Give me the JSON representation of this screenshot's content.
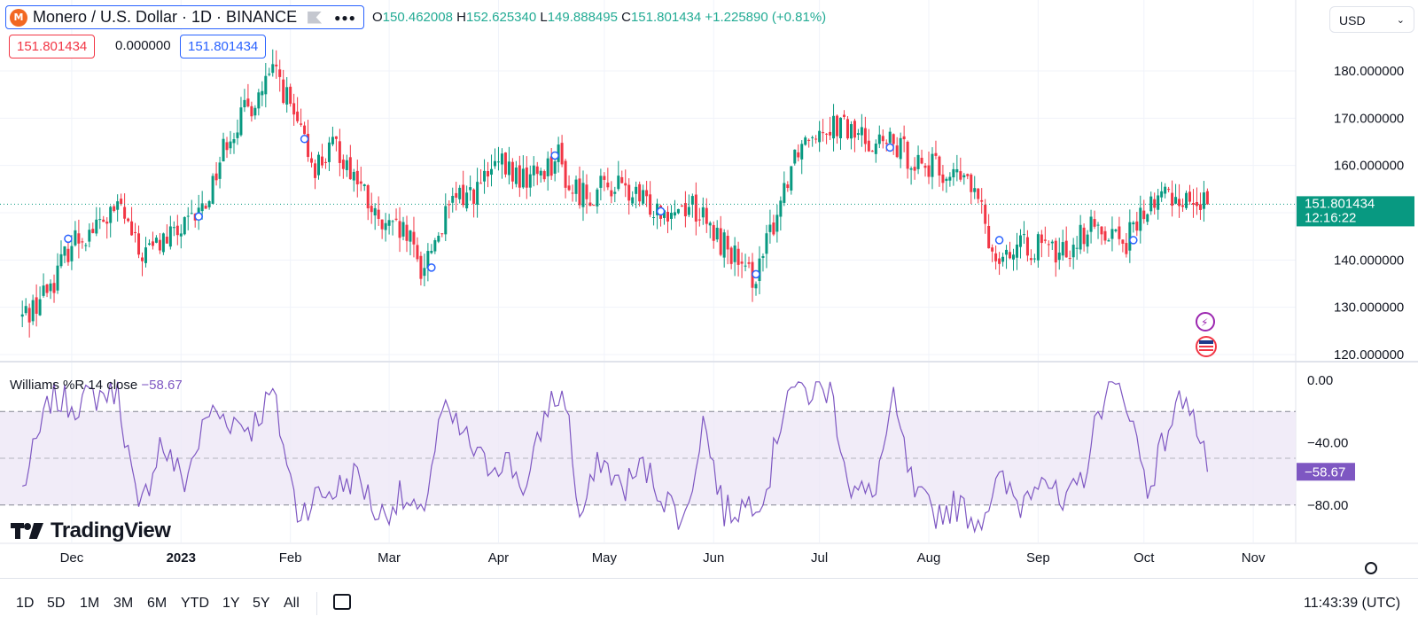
{
  "symbol": {
    "title": "Monero / U.S. Dollar · 1D · BINANCE",
    "logo_glyph": "M",
    "logo_color": "#f26822",
    "icons": [
      "monero-logo-icon",
      "flag-icon",
      "more-icon"
    ]
  },
  "ohlc": {
    "o_label": "O",
    "o_value": "150.462008",
    "h_label": "H",
    "h_value": "152.625340",
    "l_label": "L",
    "l_value": "149.888495",
    "c_label": "C",
    "c_value": "151.801434",
    "change": "+1.225890 (+0.81%)"
  },
  "value_boxes": {
    "red": "151.801434",
    "plain": "0.000000",
    "blue": "151.801434"
  },
  "currency": {
    "label": "USD",
    "icon": "chevron-down-icon"
  },
  "price_scale": {
    "ticks": [
      "180.000000",
      "170.000000",
      "160.000000",
      "140.000000",
      "130.000000",
      "120.000000"
    ],
    "current_price": "151.801434",
    "countdown": "12:16:22",
    "badge_color": "#089981"
  },
  "indicator": {
    "name": "Williams %R",
    "params": "14 close",
    "value": "−58.67",
    "ticks": [
      "0.00",
      "−40.00",
      "−80.00"
    ],
    "badge": "−58.67",
    "color": "#7e57c2"
  },
  "time_axis": [
    "Dec",
    "2023",
    "Feb",
    "Mar",
    "Apr",
    "May",
    "Jun",
    "Jul",
    "Aug",
    "Sep",
    "Oct",
    "Nov"
  ],
  "branding": {
    "text": "TradingView"
  },
  "bottom_toolbar": {
    "ranges": [
      "1D",
      "5D",
      "1M",
      "3M",
      "6M",
      "YTD",
      "1Y",
      "5Y",
      "All"
    ],
    "clock": "11:43:39 (UTC)"
  },
  "colors": {
    "up": "#089981",
    "down": "#f23645",
    "wr_line": "#7e57c2",
    "wr_band": "#ede7f6",
    "marker": "#2962ff"
  },
  "chart_data": [
    {
      "type": "candlestick",
      "title": "Monero / U.S. Dollar · 1D · BINANCE",
      "x_range": [
        "2022-11-17",
        "2023-10-19"
      ],
      "ylim": [
        118,
        188
      ],
      "last_close": 151.801434,
      "anchors": [
        [
          "2022-11-17",
          128
        ],
        [
          "2022-11-21",
          131
        ],
        [
          "2022-11-26",
          136
        ],
        [
          "2022-12-01",
          144
        ],
        [
          "2022-12-08",
          147
        ],
        [
          "2022-12-15",
          151
        ],
        [
          "2022-12-20",
          141
        ],
        [
          "2022-12-27",
          144
        ],
        [
          "2023-01-03",
          147
        ],
        [
          "2023-01-08",
          152
        ],
        [
          "2023-01-14",
          166
        ],
        [
          "2023-01-21",
          173
        ],
        [
          "2023-01-28",
          180
        ],
        [
          "2023-02-04",
          166
        ],
        [
          "2023-02-08",
          160
        ],
        [
          "2023-02-14",
          164
        ],
        [
          "2023-02-20",
          157
        ],
        [
          "2023-02-26",
          147
        ],
        [
          "2023-03-06",
          145
        ],
        [
          "2023-03-10",
          138
        ],
        [
          "2023-03-15",
          146
        ],
        [
          "2023-03-20",
          153
        ],
        [
          "2023-03-26",
          155
        ],
        [
          "2023-04-01",
          160
        ],
        [
          "2023-04-08",
          157
        ],
        [
          "2023-04-13",
          159
        ],
        [
          "2023-04-18",
          162
        ],
        [
          "2023-04-21",
          155
        ],
        [
          "2023-04-27",
          154
        ],
        [
          "2023-05-04",
          156
        ],
        [
          "2023-05-12",
          152
        ],
        [
          "2023-05-20",
          151
        ],
        [
          "2023-05-26",
          152
        ],
        [
          "2023-05-31",
          146
        ],
        [
          "2023-06-06",
          142
        ],
        [
          "2023-06-10",
          136
        ],
        [
          "2023-06-14",
          138
        ],
        [
          "2023-06-18",
          148
        ],
        [
          "2023-06-24",
          163
        ],
        [
          "2023-06-29",
          168
        ],
        [
          "2023-07-05",
          169
        ],
        [
          "2023-07-10",
          167
        ],
        [
          "2023-07-17",
          165
        ],
        [
          "2023-07-22",
          164
        ],
        [
          "2023-07-29",
          161
        ],
        [
          "2023-08-06",
          158
        ],
        [
          "2023-08-12",
          157
        ],
        [
          "2023-08-16",
          150
        ],
        [
          "2023-08-19",
          142
        ],
        [
          "2023-08-25",
          142
        ],
        [
          "2023-08-31",
          143
        ],
        [
          "2023-09-07",
          141
        ],
        [
          "2023-09-14",
          146
        ],
        [
          "2023-09-20",
          147
        ],
        [
          "2023-09-26",
          144
        ],
        [
          "2023-10-01",
          150
        ],
        [
          "2023-10-07",
          154
        ],
        [
          "2023-10-13",
          153
        ],
        [
          "2023-10-19",
          151.8
        ]
      ]
    },
    {
      "type": "line",
      "title": "Williams %R 14 close",
      "ylim": [
        -100,
        0
      ],
      "reference_lines": [
        -20,
        -50,
        -80
      ],
      "last_value": -58.67,
      "anchors": [
        [
          "2022-11-17",
          -70
        ],
        [
          "2022-11-25",
          -12
        ],
        [
          "2022-12-02",
          -15
        ],
        [
          "2022-12-08",
          -10
        ],
        [
          "2022-12-14",
          -5
        ],
        [
          "2022-12-20",
          -88
        ],
        [
          "2022-12-26",
          -40
        ],
        [
          "2023-01-02",
          -65
        ],
        [
          "2023-01-09",
          -20
        ],
        [
          "2023-01-15",
          -25
        ],
        [
          "2023-01-21",
          -30
        ],
        [
          "2023-01-27",
          -8
        ],
        [
          "2023-02-03",
          -85
        ],
        [
          "2023-02-08",
          -75
        ],
        [
          "2023-02-14",
          -70
        ],
        [
          "2023-02-20",
          -60
        ],
        [
          "2023-02-26",
          -88
        ],
        [
          "2023-03-04",
          -75
        ],
        [
          "2023-03-10",
          -90
        ],
        [
          "2023-03-16",
          -20
        ],
        [
          "2023-03-22",
          -35
        ],
        [
          "2023-03-28",
          -55
        ],
        [
          "2023-04-03",
          -50
        ],
        [
          "2023-04-09",
          -70
        ],
        [
          "2023-04-15",
          -15
        ],
        [
          "2023-04-20",
          -10
        ],
        [
          "2023-04-24",
          -90
        ],
        [
          "2023-04-30",
          -50
        ],
        [
          "2023-05-06",
          -70
        ],
        [
          "2023-05-12",
          -55
        ],
        [
          "2023-05-18",
          -75
        ],
        [
          "2023-05-24",
          -90
        ],
        [
          "2023-05-29",
          -25
        ],
        [
          "2023-06-04",
          -85
        ],
        [
          "2023-06-10",
          -80
        ],
        [
          "2023-06-16",
          -70
        ],
        [
          "2023-06-22",
          -3
        ],
        [
          "2023-06-28",
          -8
        ],
        [
          "2023-07-04",
          -5
        ],
        [
          "2023-07-10",
          -70
        ],
        [
          "2023-07-16",
          -75
        ],
        [
          "2023-07-22",
          -15
        ],
        [
          "2023-07-28",
          -75
        ],
        [
          "2023-08-03",
          -85
        ],
        [
          "2023-08-09",
          -80
        ],
        [
          "2023-08-15",
          -90
        ],
        [
          "2023-08-21",
          -65
        ],
        [
          "2023-08-27",
          -80
        ],
        [
          "2023-09-02",
          -55
        ],
        [
          "2023-09-08",
          -85
        ],
        [
          "2023-09-14",
          -60
        ],
        [
          "2023-09-20",
          -5
        ],
        [
          "2023-09-26",
          -10
        ],
        [
          "2023-10-02",
          -70
        ],
        [
          "2023-10-08",
          -30
        ],
        [
          "2023-10-13",
          -5
        ],
        [
          "2023-10-19",
          -58.67
        ]
      ]
    }
  ]
}
